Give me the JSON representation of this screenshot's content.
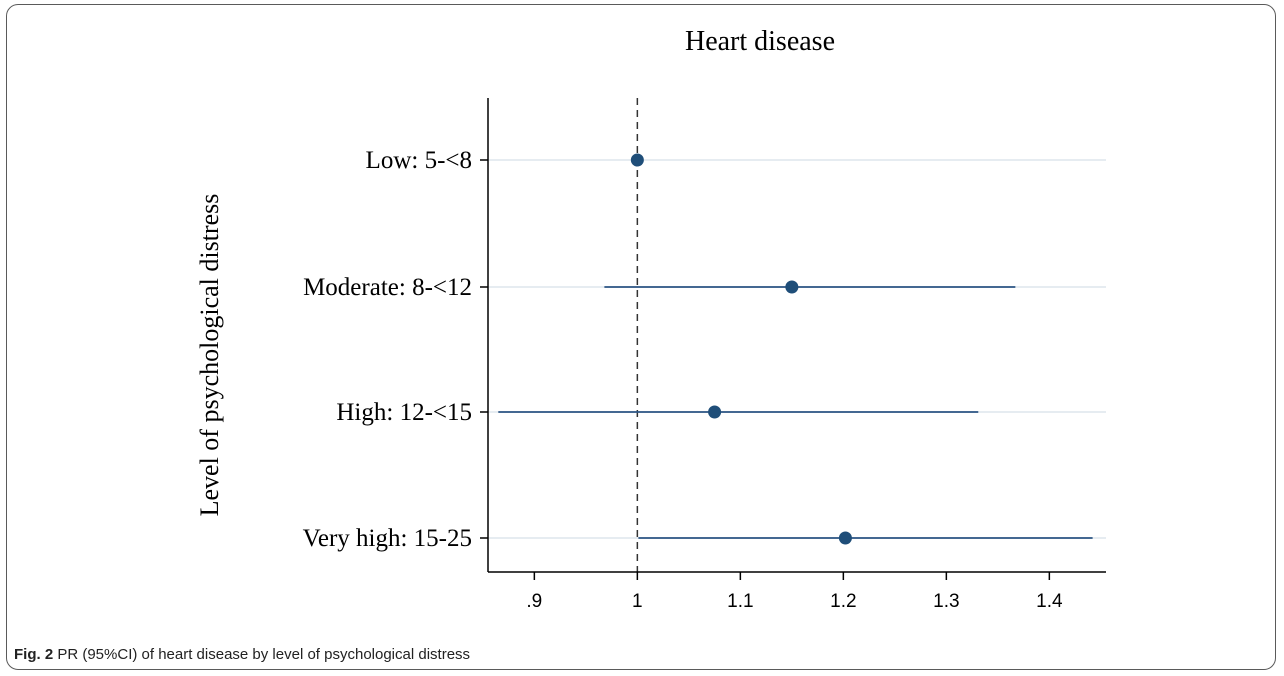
{
  "chart_data": {
    "type": "forest",
    "title": "Heart disease",
    "xlabel": "",
    "ylabel": "Level of psychological distress",
    "xlim": [
      0.855,
      1.455
    ],
    "reference_line": 1,
    "x_ticks": [
      0.9,
      1,
      1.1,
      1.2,
      1.3,
      1.4
    ],
    "x_tick_labels": [
      ".9",
      "1",
      "1.1",
      "1.2",
      "1.3",
      "1.4"
    ],
    "categories": [
      "Low: 5-<8",
      "Moderate: 8-<12",
      "High: 12-<15",
      "Very high: 15-25"
    ],
    "estimates": [
      1.0,
      1.15,
      1.075,
      1.202
    ],
    "ci_lower": [
      1.0,
      0.968,
      0.865,
      1.001
    ],
    "ci_upper": [
      1.0,
      1.367,
      1.331,
      1.442
    ],
    "colors": {
      "marker": "#1f4e79",
      "ci": "#2c5685",
      "grid": "#e6ecf1",
      "axis": "#000000"
    }
  },
  "caption": {
    "label": "Fig. 2",
    "text": " PR (95%CI) of heart disease by level of psychological distress"
  }
}
